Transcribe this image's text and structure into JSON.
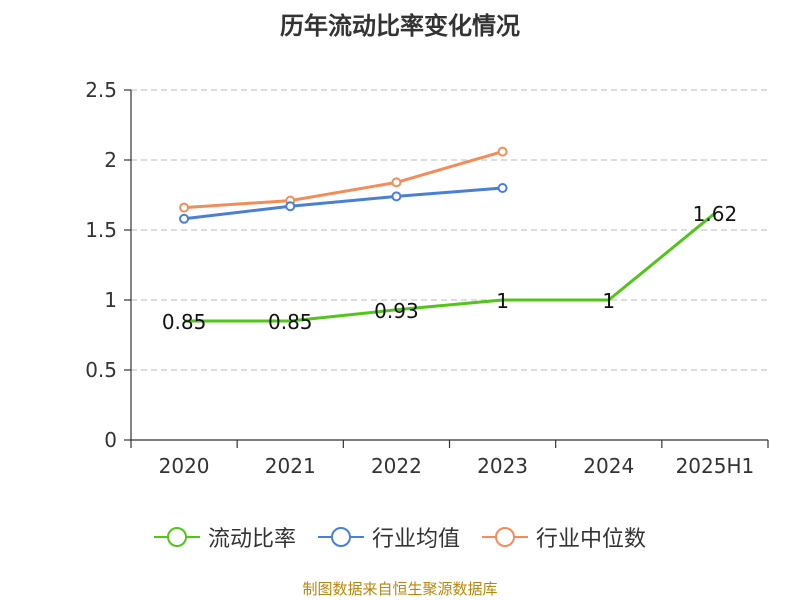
{
  "chart_data": {
    "type": "line",
    "title": "历年流动比率变化情况",
    "categories": [
      "2020",
      "2021",
      "2022",
      "2023",
      "2024",
      "2025H1"
    ],
    "ylim": [
      0,
      2.5
    ],
    "yticks": [
      "0",
      "0.5",
      "1",
      "1.5",
      "2",
      "2.5"
    ],
    "grid": true,
    "legend_position": "bottom",
    "series": [
      {
        "name": "流动比率",
        "color": "#52c41a",
        "values": [
          0.85,
          0.85,
          0.93,
          1,
          1,
          1.62
        ],
        "labels": [
          "0.85",
          "0.85",
          "0.93",
          "1",
          "1",
          "1.62"
        ]
      },
      {
        "name": "行业均值",
        "color": "#4a7fd6",
        "values": [
          1.58,
          1.67,
          1.74,
          1.8,
          null,
          null
        ]
      },
      {
        "name": "行业中位数",
        "color": "#f28c5a",
        "values": [
          1.66,
          1.71,
          1.84,
          2.06,
          null,
          null
        ]
      }
    ],
    "source": "制图数据来自恒生聚源数据库"
  }
}
